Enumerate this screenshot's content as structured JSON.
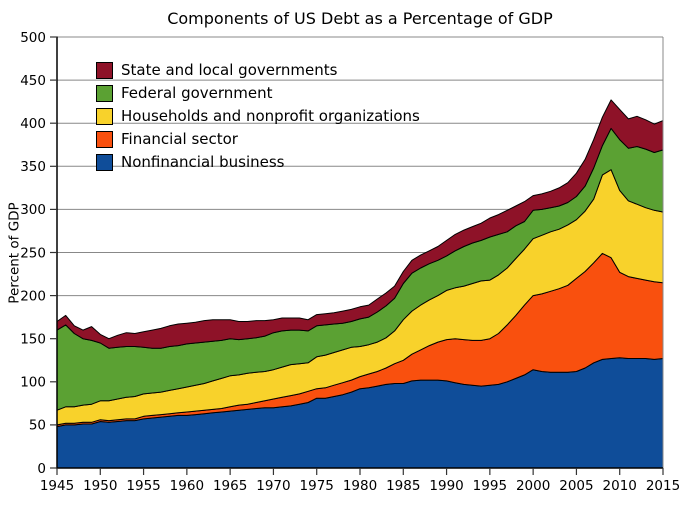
{
  "chart_data": {
    "type": "area",
    "stacked": true,
    "title": "Components of US Debt as a Percentage of GDP",
    "xlabel": "",
    "ylabel": "Percent of GDP",
    "x_range": [
      1945,
      2015
    ],
    "y_range": [
      0,
      500
    ],
    "x_ticks": [
      1945,
      1950,
      1955,
      1960,
      1965,
      1970,
      1975,
      1980,
      1985,
      1990,
      1995,
      2000,
      2005,
      2010,
      2015
    ],
    "y_ticks": [
      0,
      50,
      100,
      150,
      200,
      250,
      300,
      350,
      400,
      450,
      500
    ],
    "grid": "horizontal",
    "grid_color": "#888888",
    "axis_color": "#000000",
    "legend_position": "upper-left",
    "legend_order": [
      "State and local governments",
      "Federal government",
      "Households and nonprofit organizations",
      "Financial sector",
      "Nonfinancial business"
    ],
    "years": [
      1945,
      1946,
      1947,
      1948,
      1949,
      1950,
      1951,
      1952,
      1953,
      1954,
      1955,
      1956,
      1957,
      1958,
      1959,
      1960,
      1961,
      1962,
      1963,
      1964,
      1965,
      1966,
      1967,
      1968,
      1969,
      1970,
      1971,
      1972,
      1973,
      1974,
      1975,
      1976,
      1977,
      1978,
      1979,
      1980,
      1981,
      1982,
      1983,
      1984,
      1985,
      1986,
      1987,
      1988,
      1989,
      1990,
      1991,
      1992,
      1993,
      1994,
      1995,
      1996,
      1997,
      1998,
      1999,
      2000,
      2001,
      2002,
      2003,
      2004,
      2005,
      2006,
      2007,
      2008,
      2009,
      2010,
      2011,
      2012,
      2013,
      2014,
      2015
    ],
    "series": [
      {
        "name": "Nonfinancial business",
        "color": "#0F4D99",
        "values": [
          48,
          50,
          50,
          51,
          51,
          54,
          53,
          54,
          55,
          55,
          57,
          58,
          59,
          60,
          61,
          61,
          62,
          63,
          64,
          65,
          66,
          67,
          68,
          69,
          70,
          70,
          71,
          72,
          74,
          76,
          81,
          81,
          83,
          85,
          88,
          92,
          93,
          95,
          97,
          98,
          98,
          101,
          102,
          102,
          102,
          101,
          99,
          97,
          96,
          95,
          96,
          97,
          100,
          104,
          108,
          114,
          112,
          111,
          111,
          111,
          112,
          116,
          122,
          126,
          127,
          128,
          127,
          127,
          127,
          126,
          127
        ]
      },
      {
        "name": "Financial sector",
        "color": "#F9500E",
        "values": [
          2,
          2,
          2,
          2,
          2,
          2,
          2,
          2,
          2,
          2,
          3,
          3,
          3,
          3,
          3,
          4,
          4,
          4,
          4,
          4,
          5,
          6,
          6,
          7,
          8,
          10,
          11,
          12,
          12,
          13,
          11,
          12,
          13,
          14,
          14,
          14,
          16,
          17,
          19,
          23,
          27,
          31,
          35,
          40,
          44,
          48,
          51,
          52,
          52,
          53,
          54,
          59,
          66,
          73,
          81,
          86,
          90,
          94,
          97,
          101,
          108,
          112,
          116,
          123,
          117,
          99,
          95,
          93,
          91,
          90,
          88
        ]
      },
      {
        "name": "Households and nonprofit organizations",
        "color": "#F8D22B",
        "values": [
          17,
          19,
          19,
          20,
          21,
          22,
          23,
          24,
          25,
          26,
          26,
          26,
          26,
          27,
          28,
          29,
          30,
          31,
          33,
          35,
          36,
          35,
          36,
          35,
          34,
          34,
          35,
          36,
          35,
          33,
          37,
          38,
          38,
          38,
          38,
          35,
          34,
          34,
          35,
          38,
          47,
          50,
          52,
          53,
          54,
          57,
          59,
          62,
          66,
          69,
          68,
          68,
          66,
          66,
          65,
          66,
          68,
          69,
          69,
          70,
          68,
          70,
          74,
          91,
          102,
          95,
          88,
          86,
          84,
          83,
          82
        ]
      },
      {
        "name": "Federal government",
        "color": "#5BA133",
        "values": [
          93,
          95,
          85,
          77,
          74,
          67,
          61,
          60,
          59,
          58,
          54,
          52,
          51,
          51,
          50,
          50,
          49,
          48,
          46,
          44,
          43,
          41,
          40,
          40,
          41,
          43,
          42,
          40,
          39,
          37,
          36,
          35,
          33,
          31,
          30,
          32,
          32,
          35,
          37,
          38,
          42,
          44,
          43,
          42,
          41,
          40,
          43,
          46,
          47,
          47,
          50,
          47,
          42,
          38,
          32,
          33,
          30,
          28,
          27,
          26,
          27,
          29,
          36,
          34,
          48,
          59,
          61,
          67,
          68,
          67,
          72
        ]
      },
      {
        "name": "State and local governments",
        "color": "#8E1228",
        "values": [
          10,
          11,
          9,
          10,
          16,
          10,
          11,
          14,
          16,
          15,
          18,
          21,
          23,
          24,
          25,
          24,
          24,
          25,
          25,
          24,
          22,
          21,
          20,
          20,
          18,
          15,
          15,
          14,
          14,
          13,
          13,
          13,
          13,
          14,
          14,
          14,
          14,
          15,
          15,
          14,
          14,
          15,
          15,
          15,
          16,
          18,
          19,
          19,
          19,
          20,
          22,
          23,
          25,
          23,
          23,
          17,
          18,
          19,
          21,
          23,
          27,
          31,
          33,
          33,
          33,
          35,
          34,
          35,
          34,
          33,
          34
        ]
      }
    ]
  }
}
